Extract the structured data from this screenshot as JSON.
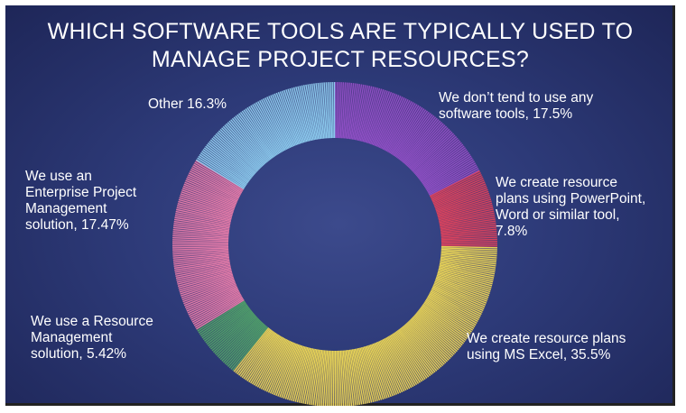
{
  "chart_data": {
    "type": "pie",
    "title_lines": [
      "WHICH SOFTWARE TOOLS ARE TYPICALLY USED TO",
      "MANAGE PROJECT RESOURCES?"
    ],
    "slices": [
      {
        "label_lines": [
          "We don’t tend to use any",
          "software tools, 17.5%"
        ],
        "value": 17.5,
        "color": "#8e4fc4"
      },
      {
        "label_lines": [
          "We create resource",
          "plans using PowerPoint,",
          "Word or similar tool,",
          "7.8%"
        ],
        "value": 7.8,
        "color": "#d6435e"
      },
      {
        "label_lines": [
          "We create resource plans",
          "using MS Excel, 35.5%"
        ],
        "value": 35.5,
        "color": "#e6d257"
      },
      {
        "label_lines": [
          "We use a Resource",
          "Management",
          "solution, 5.42%"
        ],
        "value": 5.42,
        "color": "#4fa06a"
      },
      {
        "label_lines": [
          "We use an",
          "Enterprise Project",
          "Management",
          "solution, 17.47%"
        ],
        "value": 17.47,
        "color": "#e07aa8"
      },
      {
        "label_lines": [
          "Other 16.3%"
        ],
        "value": 16.3,
        "color": "#8ac8ec"
      }
    ]
  }
}
